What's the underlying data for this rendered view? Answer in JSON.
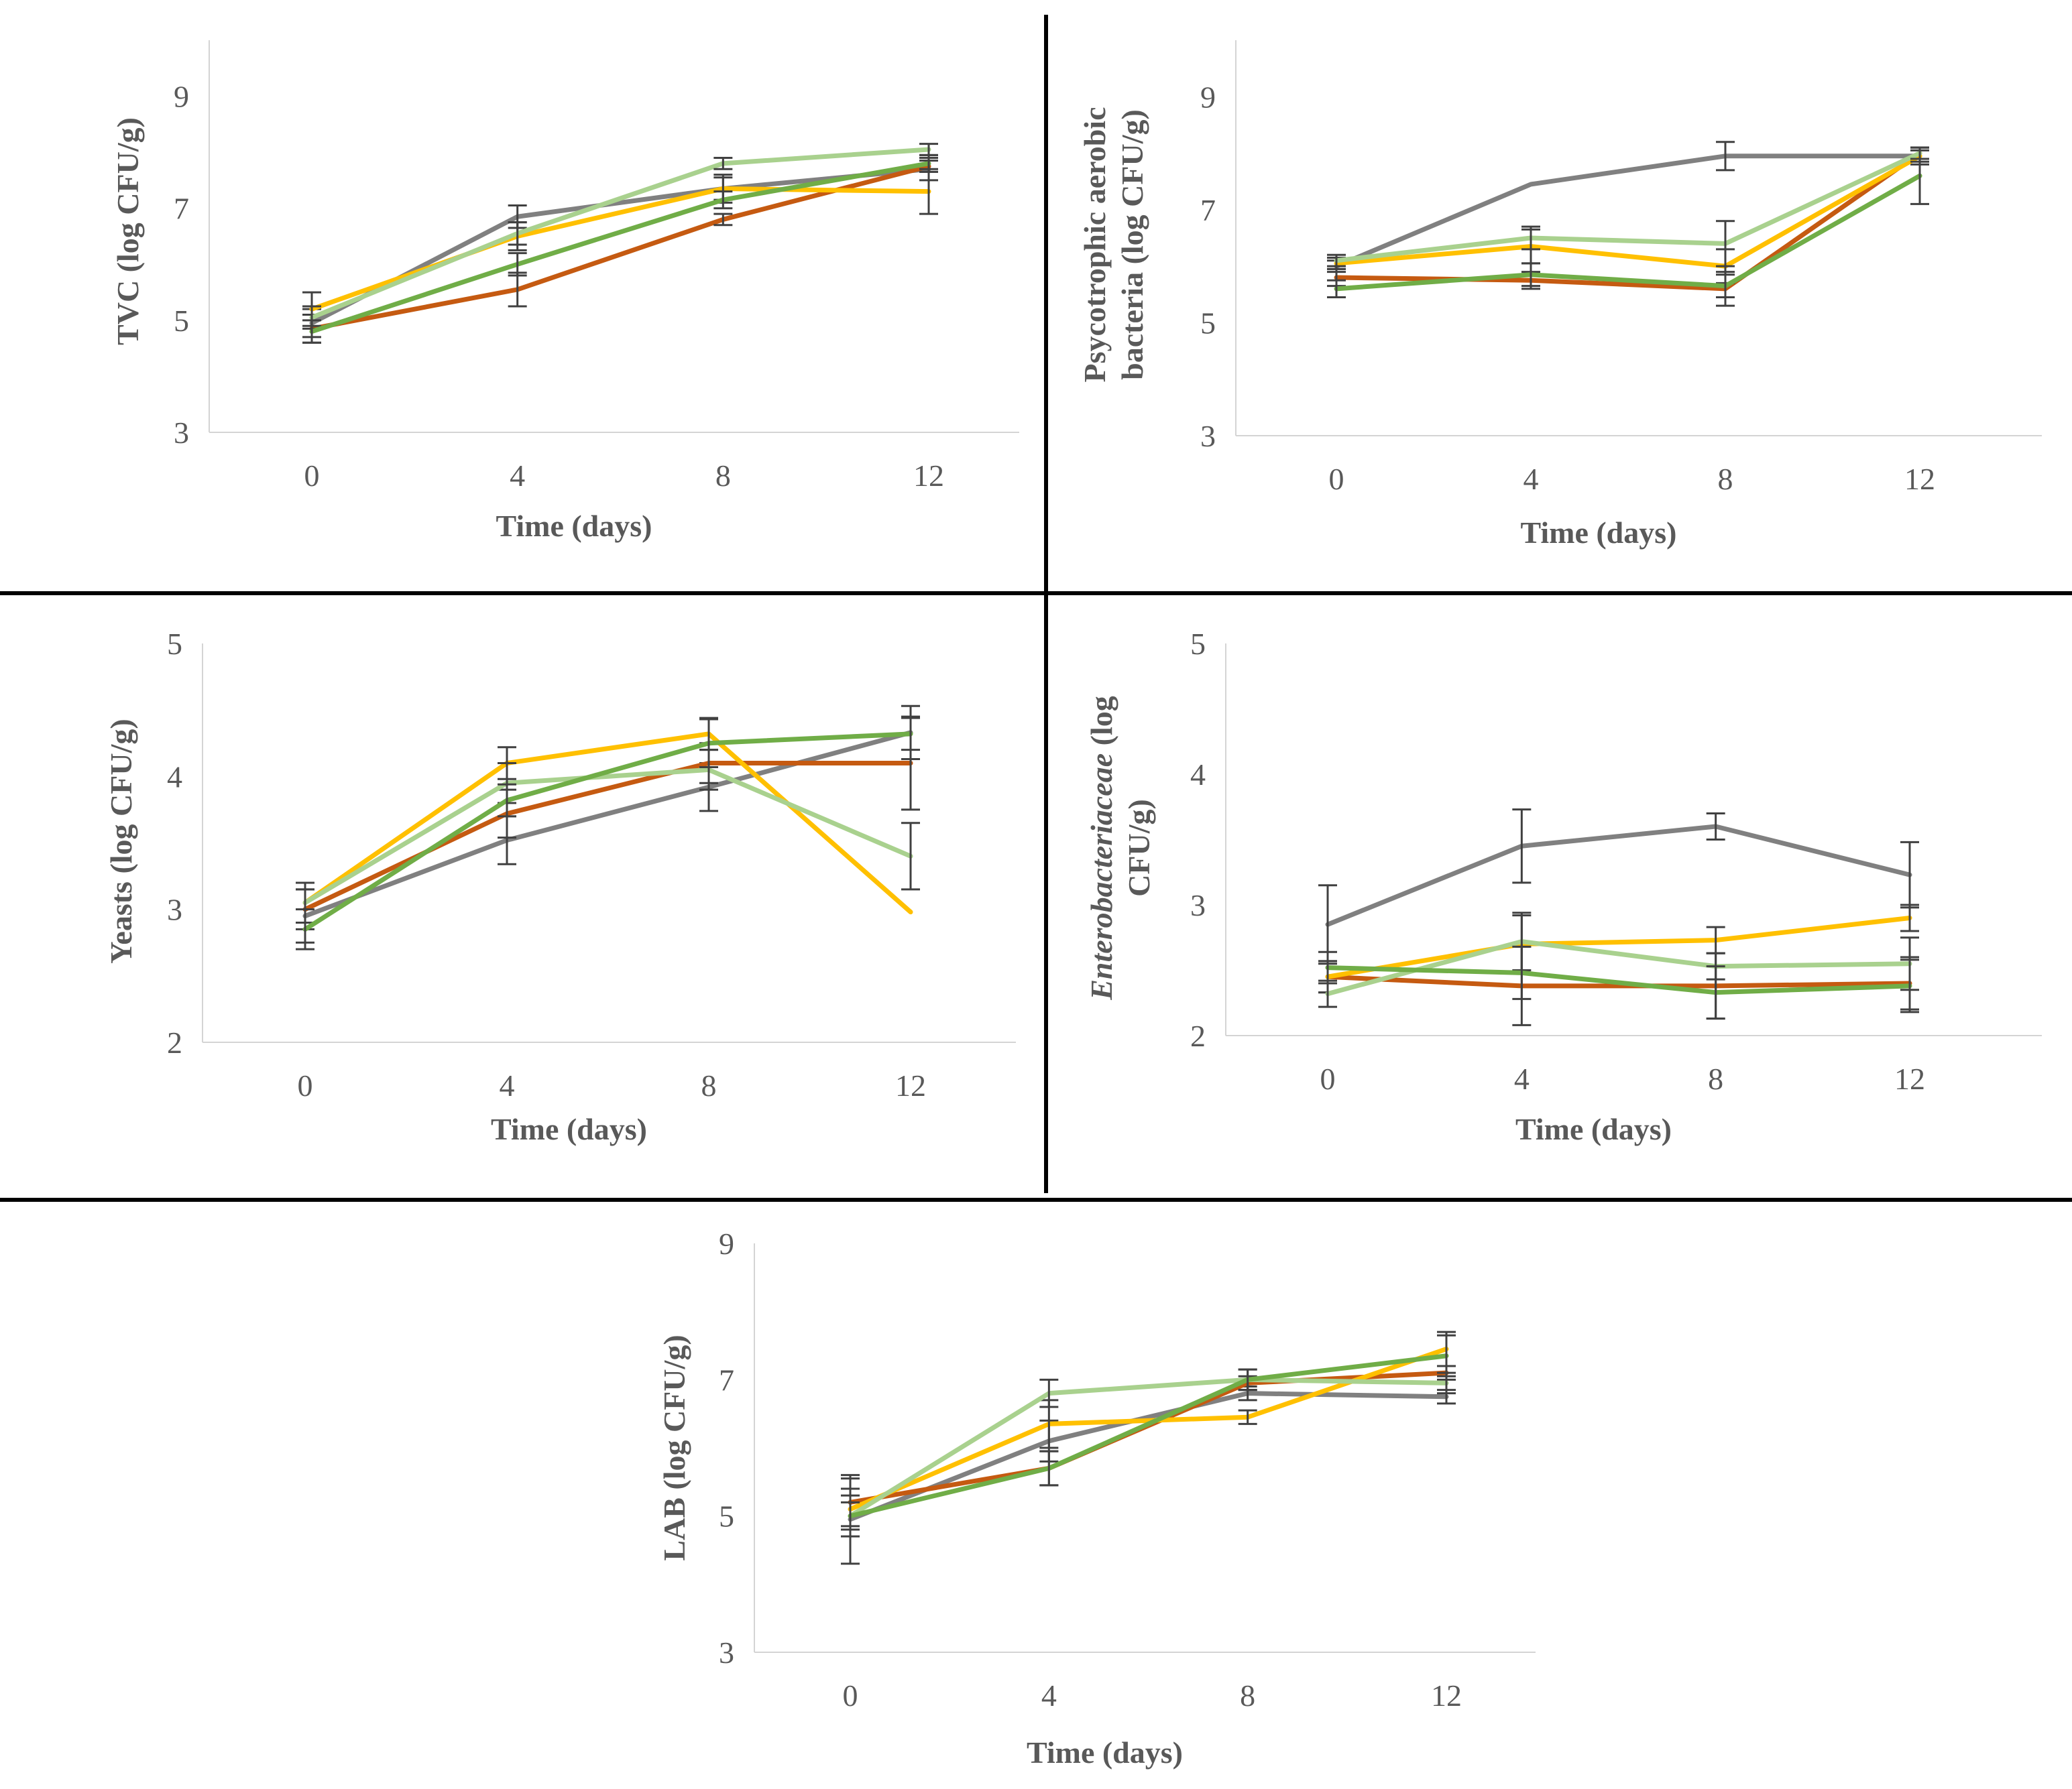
{
  "figure": {
    "colors": {
      "series1": "#808080",
      "series2": "#c55a11",
      "series3": "#ffc000",
      "series4": "#a9d18e",
      "series5": "#70ad47",
      "errorbar": "#404040",
      "axis": "#d4d4d4",
      "divider": "#000000"
    }
  },
  "chart_data": [
    {
      "id": "tvc",
      "type": "line",
      "ylabel_lines": [
        "TVC (log CFU/g)"
      ],
      "xlabel": "Time (days)",
      "categories": [
        "0",
        "4",
        "8",
        "12"
      ],
      "ylim": [
        3,
        10
      ],
      "yticks": [
        "3",
        "5",
        "7",
        "9"
      ],
      "series": [
        {
          "name": "series-1",
          "color_key": "series1",
          "values": [
            4.95,
            6.85,
            7.35,
            7.7
          ],
          "errors": [
            0.25,
            0.2,
            0.2,
            0.2
          ]
        },
        {
          "name": "series-2",
          "color_key": "series2",
          "values": [
            4.85,
            5.55,
            6.8,
            7.75
          ],
          "errors": [
            0.25,
            0.3,
            0.1,
            0.1
          ]
        },
        {
          "name": "series-3",
          "color_key": "series3",
          "values": [
            5.2,
            6.5,
            7.35,
            7.3
          ],
          "errors": [
            0.3,
            0.25,
            0.25,
            0.4
          ]
        },
        {
          "name": "series-4",
          "color_key": "series4",
          "values": [
            5.05,
            6.55,
            7.8,
            8.05
          ],
          "errors": [
            0.2,
            0.2,
            0.1,
            0.1
          ]
        },
        {
          "name": "series-5",
          "color_key": "series5",
          "values": [
            4.8,
            6.0,
            7.15,
            7.8
          ],
          "errors": [
            0.2,
            0.2,
            0.15,
            0.15
          ]
        }
      ]
    },
    {
      "id": "psychrotrophic",
      "type": "line",
      "ylabel_lines": [
        "Psycotrophic aerobic",
        "bacteria (log CFU/g)"
      ],
      "xlabel": "Time (days)",
      "categories": [
        "0",
        "4",
        "8",
        "12"
      ],
      "ylim": [
        3,
        10
      ],
      "yticks": [
        "3",
        "5",
        "7",
        "9"
      ],
      "series": [
        {
          "name": "series-1",
          "color_key": "series1",
          "values": [
            6.0,
            7.45,
            7.95,
            7.95
          ],
          "errors": [
            0.1,
            0.0,
            0.25,
            0.15
          ]
        },
        {
          "name": "series-2",
          "color_key": "series2",
          "values": [
            5.8,
            5.75,
            5.6,
            8.0
          ],
          "errors": [
            0.15,
            0.15,
            0.3,
            0.1
          ]
        },
        {
          "name": "series-3",
          "color_key": "series3",
          "values": [
            6.05,
            6.35,
            6.0,
            7.95
          ],
          "errors": [
            0.1,
            0.3,
            0.3,
            0.1
          ]
        },
        {
          "name": "series-4",
          "color_key": "series4",
          "values": [
            6.1,
            6.5,
            6.4,
            8.0
          ],
          "errors": [
            0.1,
            0.2,
            0.4,
            0.1
          ]
        },
        {
          "name": "series-5",
          "color_key": "series5",
          "values": [
            5.6,
            5.85,
            5.65,
            7.6
          ],
          "errors": [
            0.15,
            0.2,
            0.2,
            0.5
          ]
        }
      ]
    },
    {
      "id": "yeasts",
      "type": "line",
      "ylabel_lines": [
        "Yeasts (log CFU/g)"
      ],
      "xlabel": "Time (days)",
      "categories": [
        "0",
        "4",
        "8",
        "12"
      ],
      "ylim": [
        2,
        5
      ],
      "yticks": [
        "2",
        "3",
        "4",
        "5"
      ],
      "series": [
        {
          "name": "series-1",
          "color_key": "series1",
          "values": [
            2.95,
            3.52,
            3.92,
            4.33
          ],
          "errors": [
            0.2,
            0.18,
            0.18,
            0.2
          ]
        },
        {
          "name": "series-2",
          "color_key": "series2",
          "values": [
            3.0,
            3.72,
            4.1,
            4.1
          ],
          "errors": [
            0.15,
            0.18,
            0.15,
            0.35
          ]
        },
        {
          "name": "series-3",
          "color_key": "series3",
          "values": [
            3.05,
            4.1,
            4.32,
            2.98
          ],
          "errors": [
            0.15,
            0.12,
            0.12,
            0.0
          ]
        },
        {
          "name": "series-4",
          "color_key": "series4",
          "values": [
            3.05,
            3.95,
            4.05,
            3.4
          ],
          "errors": [
            0.15,
            0.15,
            0.15,
            0.25
          ]
        },
        {
          "name": "series-5",
          "color_key": "series5",
          "values": [
            2.85,
            3.82,
            4.25,
            4.32
          ],
          "errors": [
            0.15,
            0.12,
            0.18,
            0.12
          ]
        }
      ]
    },
    {
      "id": "enterobacteriaceae",
      "type": "line",
      "ylabel_lines": [
        "Enterobacteriaceae (log",
        "CFU/g)"
      ],
      "ylabel_italic_word": "Enterobacteriaceae",
      "xlabel": "Time (days)",
      "categories": [
        "0",
        "4",
        "8",
        "12"
      ],
      "ylim": [
        2,
        5
      ],
      "yticks": [
        "2",
        "3",
        "4",
        "5"
      ],
      "series": [
        {
          "name": "series-1",
          "color_key": "series1",
          "values": [
            2.85,
            3.45,
            3.6,
            3.23
          ],
          "errors": [
            0.3,
            0.28,
            0.1,
            0.25
          ]
        },
        {
          "name": "series-2",
          "color_key": "series2",
          "values": [
            2.45,
            2.38,
            2.38,
            2.4
          ],
          "errors": [
            0.12,
            0.3,
            0.25,
            0.2
          ]
        },
        {
          "name": "series-3",
          "color_key": "series3",
          "values": [
            2.45,
            2.7,
            2.73,
            2.9
          ],
          "errors": [
            0.12,
            0.22,
            0.1,
            0.1
          ]
        },
        {
          "name": "series-4",
          "color_key": "series4",
          "values": [
            2.32,
            2.72,
            2.53,
            2.55
          ],
          "errors": [
            0.1,
            0.22,
            0.1,
            0.2
          ]
        },
        {
          "name": "series-5",
          "color_key": "series5",
          "values": [
            2.52,
            2.48,
            2.33,
            2.38
          ],
          "errors": [
            0.12,
            0.2,
            0.2,
            0.2
          ]
        }
      ]
    },
    {
      "id": "lab",
      "type": "line",
      "ylabel_lines": [
        "LAB (log CFU/g)"
      ],
      "xlabel": "Time (days)",
      "categories": [
        "0",
        "4",
        "8",
        "12"
      ],
      "ylim": [
        3,
        9
      ],
      "yticks": [
        "3",
        "5",
        "7",
        "9"
      ],
      "series": [
        {
          "name": "series-1",
          "color_key": "series1",
          "values": [
            4.95,
            6.1,
            6.8,
            6.75
          ],
          "errors": [
            0.65,
            0.3,
            0.1,
            0.1
          ]
        },
        {
          "name": "series-2",
          "color_key": "series2",
          "values": [
            5.2,
            5.7,
            6.95,
            7.1
          ],
          "errors": [
            0.35,
            0.25,
            0.1,
            0.1
          ]
        },
        {
          "name": "series-3",
          "color_key": "series3",
          "values": [
            5.1,
            6.35,
            6.45,
            7.45
          ],
          "errors": [
            0.3,
            0.35,
            0.1,
            0.25
          ]
        },
        {
          "name": "series-4",
          "color_key": "series4",
          "values": [
            5.0,
            6.8,
            7.0,
            6.95
          ],
          "errors": [
            0.3,
            0.2,
            0.15,
            0.15
          ]
        },
        {
          "name": "series-5",
          "color_key": "series5",
          "values": [
            5.0,
            5.7,
            7.0,
            7.35
          ],
          "errors": [
            0.2,
            0.25,
            0.15,
            0.3
          ]
        }
      ]
    }
  ]
}
